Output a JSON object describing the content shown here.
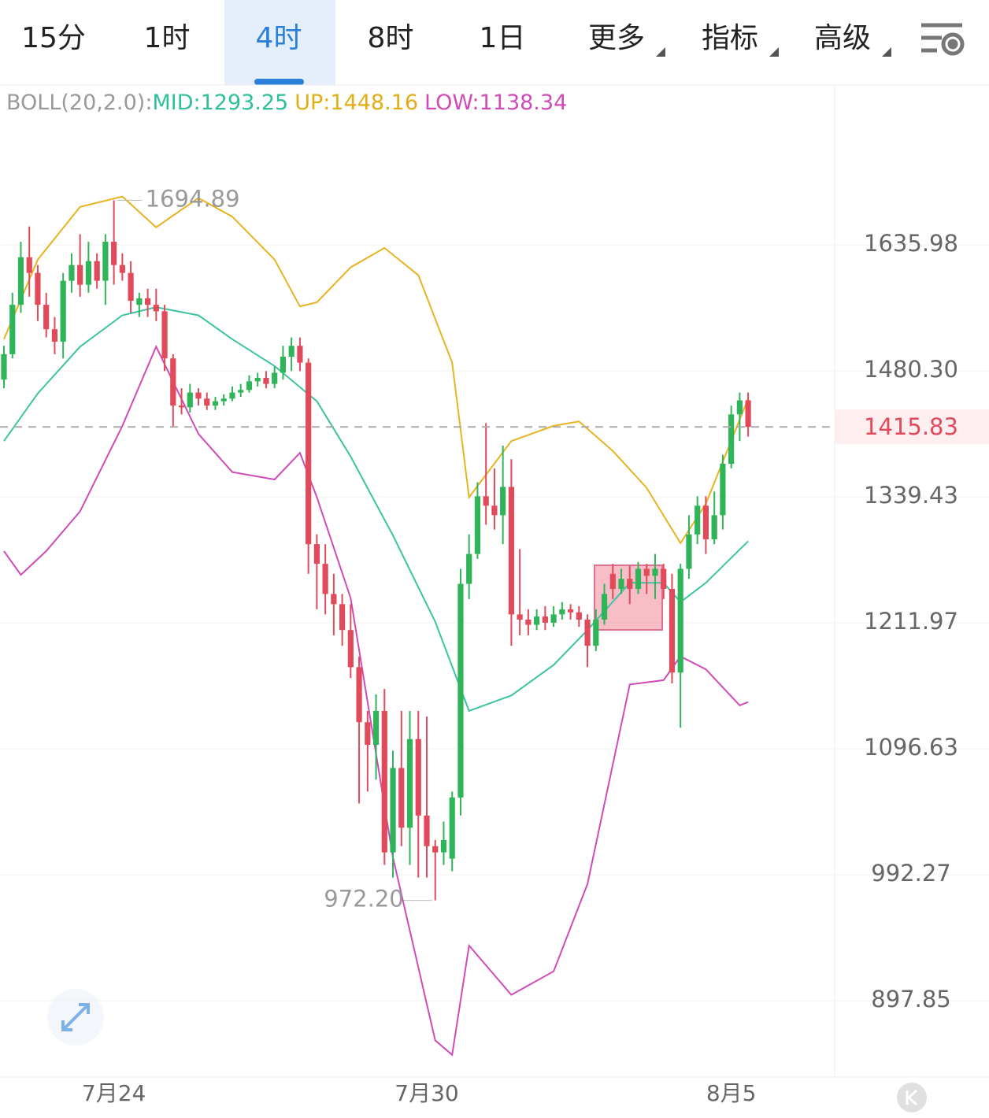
{
  "tabs": {
    "items": [
      "15分",
      "1时",
      "4时",
      "8时",
      "1日",
      "更多",
      "指标",
      "高级"
    ],
    "active": 2
  },
  "indicator": {
    "name": "BOLL(20,2.0):",
    "mid": "MID:1293.25",
    "up": "UP:1448.16",
    "low": "LOW:1138.34"
  },
  "chart_data": {
    "type": "candlestick",
    "log_scale": true,
    "ylim": [
      845,
      1855
    ],
    "yticks": [
      897.85,
      992.27,
      1096.63,
      1211.97,
      1339.43,
      {
        "value": 1480.3,
        "label": "1480.30"
      },
      1635.98
    ],
    "categories": [
      null,
      null,
      null,
      null,
      null,
      null,
      null,
      null,
      null,
      null,
      null,
      null,
      null,
      "7月24",
      null,
      null,
      null,
      null,
      null,
      null,
      null,
      null,
      null,
      null,
      null,
      null,
      null,
      null,
      null,
      null,
      null,
      null,
      null,
      null,
      null,
      null,
      null,
      null,
      null,
      null,
      null,
      null,
      null,
      null,
      null,
      null,
      null,
      null,
      null,
      null,
      "7月30",
      null,
      null,
      null,
      null,
      null,
      null,
      null,
      null,
      null,
      null,
      null,
      null,
      null,
      null,
      null,
      null,
      null,
      null,
      null,
      null,
      null,
      null,
      null,
      null,
      null,
      null,
      null,
      null,
      null,
      null,
      null,
      null,
      null,
      null,
      null,
      "8月5",
      null,
      null
    ],
    "up_color": "#2fb45a",
    "down_color": "#e04a5a",
    "open": [
      1470,
      1500,
      1560,
      1620,
      1600,
      1560,
      1530,
      1515,
      1590,
      1610,
      1585,
      1615,
      1590,
      1640,
      1610,
      1600,
      1560,
      1568,
      1560,
      1552,
      1495,
      1440,
      1438,
      1455,
      1448,
      1440,
      1445,
      1448,
      1455,
      1458,
      1468,
      1472,
      1465,
      1478,
      1497,
      1510,
      1490,
      1290,
      1270,
      1240,
      1230,
      1205,
      1170,
      1120,
      1100,
      1130,
      1010,
      1080,
      1030,
      1105,
      1040,
      1015,
      1010,
      1005,
      1055,
      1250,
      1280,
      1340,
      1330,
      1320,
      1350,
      1220,
      1215,
      1210,
      1218,
      1212,
      1220,
      1225,
      1222,
      1215,
      1190,
      1215,
      1260,
      1245,
      1255,
      1245,
      1265,
      1258,
      1265,
      1245,
      1165,
      1265,
      1300,
      1330,
      1295,
      1320,
      1375,
      1430,
      1446
    ],
    "high": [
      1510,
      1575,
      1640,
      1660,
      1610,
      1575,
      1545,
      1600,
      1625,
      1650,
      1640,
      1625,
      1650,
      1694.89,
      1625,
      1615,
      1575,
      1580,
      1580,
      1560,
      1500,
      1460,
      1465,
      1460,
      1455,
      1450,
      1453,
      1462,
      1465,
      1475,
      1478,
      1480,
      1485,
      1510,
      1520,
      1520,
      1495,
      1300,
      1290,
      1260,
      1240,
      1230,
      1180,
      1130,
      1145,
      1150,
      1095,
      1130,
      1130,
      1130,
      1125,
      1020,
      1035,
      1060,
      1265,
      1300,
      1355,
      1420,
      1370,
      1395,
      1380,
      1285,
      1225,
      1225,
      1228,
      1228,
      1232,
      1230,
      1228,
      1220,
      1225,
      1250,
      1270,
      1265,
      1268,
      1272,
      1270,
      1280,
      1270,
      1260,
      1270,
      1320,
      1340,
      1340,
      1345,
      1385,
      1440,
      1455,
      1455
    ],
    "low": [
      1460,
      1495,
      1550,
      1570,
      1540,
      1520,
      1500,
      1495,
      1575,
      1570,
      1575,
      1580,
      1560,
      1585,
      1590,
      1550,
      1545,
      1545,
      1540,
      1480,
      1415,
      1430,
      1432,
      1440,
      1435,
      1435,
      1440,
      1445,
      1450,
      1455,
      1462,
      1460,
      1460,
      1470,
      1480,
      1480,
      1260,
      1225,
      1220,
      1200,
      1190,
      1160,
      1050,
      1060,
      1070,
      1000,
      990,
      1015,
      1000,
      990,
      990,
      972.2,
      1000,
      995,
      1040,
      1235,
      1275,
      1310,
      1305,
      1290,
      1190,
      1200,
      1200,
      1205,
      1205,
      1208,
      1215,
      1215,
      1208,
      1170,
      1185,
      1210,
      1235,
      1240,
      1230,
      1240,
      1240,
      1235,
      1235,
      1155,
      1115,
      1255,
      1290,
      1280,
      1290,
      1305,
      1370,
      1400,
      1405
    ],
    "close": [
      1500,
      1560,
      1620,
      1600,
      1560,
      1530,
      1515,
      1590,
      1610,
      1585,
      1615,
      1590,
      1640,
      1610,
      1600,
      1565,
      1568,
      1560,
      1552,
      1495,
      1440,
      1438,
      1455,
      1448,
      1440,
      1445,
      1448,
      1455,
      1458,
      1468,
      1472,
      1465,
      1478,
      1497,
      1510,
      1490,
      1290,
      1270,
      1240,
      1230,
      1205,
      1170,
      1120,
      1100,
      1130,
      1010,
      1080,
      1030,
      1105,
      1040,
      1015,
      1010,
      1020,
      1055,
      1250,
      1280,
      1340,
      1330,
      1320,
      1350,
      1220,
      1215,
      1210,
      1218,
      1212,
      1220,
      1225,
      1222,
      1215,
      1190,
      1215,
      1240,
      1245,
      1255,
      1245,
      1265,
      1258,
      1265,
      1245,
      1165,
      1265,
      1300,
      1330,
      1295,
      1320,
      1375,
      1430,
      1446,
      1415.83
    ],
    "boll_up": {
      "color": "#e8b321",
      "x": [
        0,
        4,
        9,
        14,
        18,
        23,
        27,
        32,
        35,
        37,
        41,
        45,
        49,
        53,
        55,
        60,
        65,
        68,
        72,
        76,
        80,
        83,
        88
      ],
      "values": [
        1518,
        1617,
        1686,
        1700,
        1659,
        1698,
        1673,
        1617,
        1558,
        1563,
        1607,
        1632,
        1597,
        1490,
        1339,
        1400,
        1417,
        1422,
        1389,
        1349,
        1291,
        1332,
        1448
      ]
    },
    "boll_mid": {
      "color": "#3cc3a0",
      "x": [
        0,
        4,
        9,
        14,
        18,
        23,
        27,
        32,
        37,
        41,
        46,
        51,
        55,
        60,
        65,
        69,
        74,
        78,
        80,
        83,
        88
      ],
      "values": [
        1400,
        1454,
        1509,
        1547,
        1557,
        1547,
        1518,
        1486,
        1445,
        1383,
        1299,
        1213,
        1130,
        1144,
        1172,
        1205,
        1251,
        1251,
        1232,
        1251,
        1293
      ]
    },
    "boll_low": {
      "color": "#d04bb8",
      "x": [
        0,
        2,
        5,
        9,
        14,
        18,
        23,
        27,
        32,
        35,
        37,
        41,
        46,
        51,
        53,
        55,
        60,
        65,
        69,
        74,
        78,
        80,
        83,
        87,
        88
      ],
      "values": [
        1283,
        1259,
        1283,
        1324,
        1417,
        1509,
        1408,
        1366,
        1358,
        1387,
        1339,
        1236,
        1006,
        870,
        860,
        938,
        902,
        919,
        985,
        1154,
        1158,
        1180,
        1168,
        1135,
        1138
      ]
    },
    "last_price": 1415.83,
    "high_label": 1694.89,
    "low_label": {
      "value": 972.2,
      "label": "972.20"
    }
  }
}
